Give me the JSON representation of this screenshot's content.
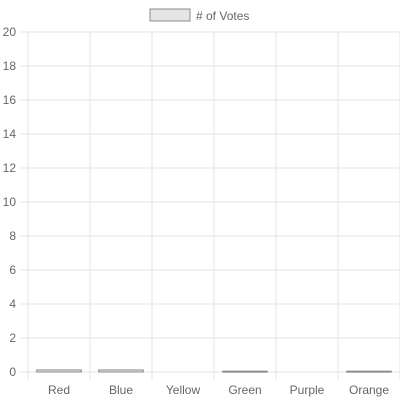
{
  "chart_data": {
    "type": "bar",
    "categories": [
      "Red",
      "Blue",
      "Yellow",
      "Green",
      "Purple",
      "Orange"
    ],
    "series": [
      {
        "name": "# of Votes",
        "values": [
          0.12,
          0.12,
          0,
          0.05,
          0,
          0.05
        ]
      }
    ],
    "ylim": [
      0,
      20
    ],
    "yticks": [
      0,
      2,
      4,
      6,
      8,
      10,
      12,
      14,
      16,
      18,
      20
    ],
    "grid": true,
    "legend_position": "top-center",
    "colors": {
      "bar_fill": "#e5e5e5",
      "bar_border": "#8c8c8c",
      "grid": "#e6e6e6",
      "text": "#666666"
    }
  }
}
